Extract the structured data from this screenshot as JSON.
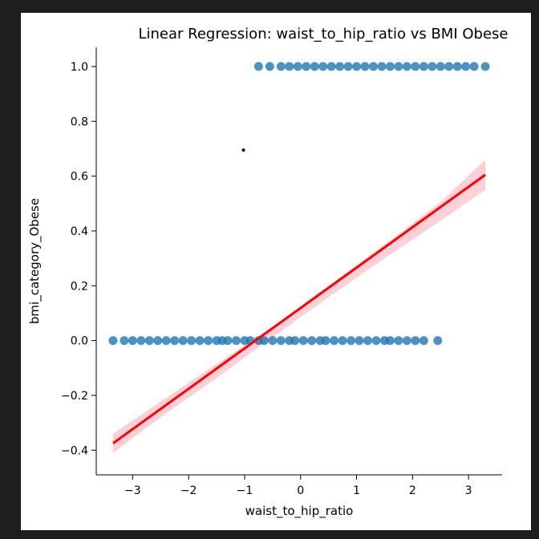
{
  "chart_data": {
    "type": "scatter",
    "title": "Linear Regression: waist_to_hip_ratio vs BMI Obese",
    "xlabel": "waist_to_hip_ratio",
    "ylabel": "bmi_category_Obese",
    "xlim": [
      -3.65,
      3.6
    ],
    "ylim": [
      -0.49,
      1.07
    ],
    "xticks": [
      -3,
      -2,
      -1,
      0,
      1,
      2,
      3
    ],
    "xtick_labels": [
      "−3",
      "−2",
      "−1",
      "0",
      "1",
      "2",
      "3"
    ],
    "yticks": [
      -0.4,
      -0.2,
      0.0,
      0.2,
      0.4,
      0.6,
      0.8,
      1.0
    ],
    "ytick_labels": [
      "−0.4",
      "−0.2",
      "0.0",
      "0.2",
      "0.4",
      "0.6",
      "0.8",
      "1.0"
    ],
    "grid": false,
    "point_color": "#1f77b4",
    "line_color": "#ff0000",
    "ci_color": "#ffc0cb",
    "series": [
      {
        "values_x": [
          -3.35,
          -3.15,
          -3.0,
          -2.85,
          -2.7,
          -2.55,
          -2.4,
          -2.25,
          -2.1,
          -1.95,
          -1.8,
          -1.65,
          -1.5,
          -1.4,
          -1.3,
          -1.15,
          -1.0,
          -0.9,
          -0.75,
          -0.65,
          -0.5,
          -0.35,
          -0.2,
          -0.1,
          0.05,
          0.2,
          0.35,
          0.45,
          0.6,
          0.75,
          0.9,
          1.05,
          1.2,
          1.35,
          1.5,
          1.6,
          1.75,
          1.9,
          2.05,
          2.2,
          2.45
        ],
        "values_y": [
          0,
          0,
          0,
          0,
          0,
          0,
          0,
          0,
          0,
          0,
          0,
          0,
          0,
          0,
          0,
          0,
          0,
          0,
          0,
          0,
          0,
          0,
          0,
          0,
          0,
          0,
          0,
          0,
          0,
          0,
          0,
          0,
          0,
          0,
          0,
          0,
          0,
          0,
          0,
          0,
          0
        ]
      },
      {
        "values_x": [
          -0.75,
          -0.55,
          -0.35,
          -0.2,
          -0.05,
          0.1,
          0.25,
          0.4,
          0.55,
          0.7,
          0.85,
          1.0,
          1.15,
          1.3,
          1.45,
          1.6,
          1.75,
          1.9,
          2.05,
          2.2,
          2.35,
          2.5,
          2.65,
          2.8,
          2.95,
          3.1,
          3.3
        ],
        "values_y": [
          1,
          1,
          1,
          1,
          1,
          1,
          1,
          1,
          1,
          1,
          1,
          1,
          1,
          1,
          1,
          1,
          1,
          1,
          1,
          1,
          1,
          1,
          1,
          1,
          1,
          1,
          1
        ]
      }
    ],
    "stray_point": {
      "x": -1.02,
      "y": 0.695
    },
    "regression_line": {
      "x": [
        -3.35,
        3.3
      ],
      "y": [
        -0.375,
        0.605
      ]
    },
    "confidence_band": {
      "x": [
        -3.35,
        -2.5,
        -1.5,
        -0.5,
        0.5,
        1.5,
        2.5,
        3.3
      ],
      "lower": [
        -0.41,
        -0.28,
        -0.137,
        0.012,
        0.158,
        0.3,
        0.437,
        0.55
      ],
      "upper": [
        -0.34,
        -0.222,
        -0.085,
        0.05,
        0.2,
        0.35,
        0.505,
        0.66
      ]
    }
  }
}
